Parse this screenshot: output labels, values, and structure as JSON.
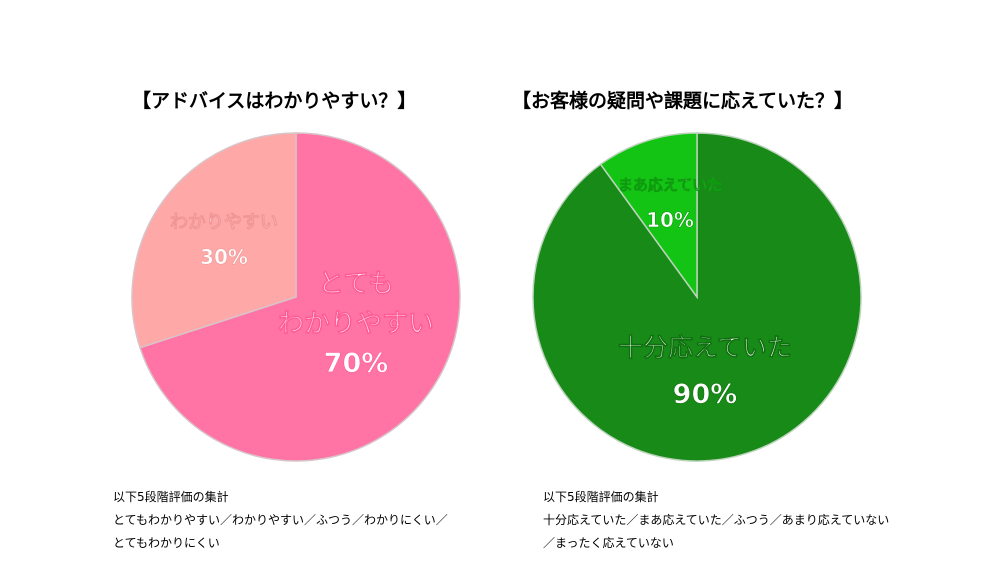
{
  "chart_data": [
    {
      "type": "pie",
      "title": "【アドバイスはわかりやすい？】",
      "slices": [
        {
          "label_line1": "とても",
          "label_line2": "わかりやすい",
          "value": 70,
          "value_label": "70%",
          "color": "#FF73A5"
        },
        {
          "label_line1": "",
          "label_line2": "わかりやすい",
          "value": 30,
          "value_label": "30%",
          "color": "#FFA8A8"
        }
      ]
    },
    {
      "type": "pie",
      "title": "【お客様の疑問や課題に応えていた？】",
      "slices": [
        {
          "label_line1": "",
          "label_line2": "十分応えていた",
          "value": 90,
          "value_label": "90%",
          "color": "#178A17"
        },
        {
          "label_line1": "",
          "label_line2": "まあ応えていた",
          "value": 10,
          "value_label": "10%",
          "color": "#14C414"
        }
      ]
    }
  ],
  "notes": {
    "left": {
      "line1": "以下5段階評価の集計",
      "line2": "とてもわかりやすい／わかりやすい／ふつう／わかりにくい／",
      "line3": "とてもわかりにくい"
    },
    "right": {
      "line1": "以下5段階評価の集計",
      "line2": "十分応えていた／まあ応えていた／ふつう／あまり応えていない",
      "line3": "／まったく応えていない"
    }
  }
}
